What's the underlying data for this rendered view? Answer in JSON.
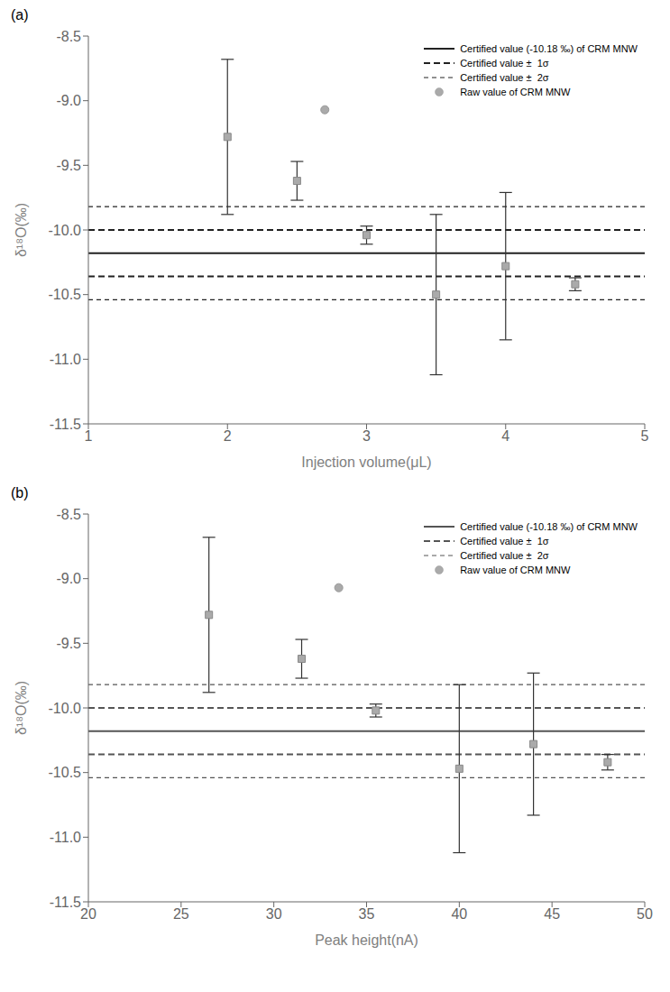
{
  "chart_data": [
    {
      "type": "scatter",
      "title": "(a)",
      "x_label": "Injection volume(μL)",
      "y_label": "δ¹⁸O(‰)",
      "xlim": [
        1,
        5
      ],
      "ylim": [
        -11.5,
        -8.5
      ],
      "xticks": [
        1,
        2,
        3,
        4,
        5
      ],
      "yticks": [
        -11.5,
        {
          "value": -11.0,
          "label": "-11.0"
        },
        -10.5,
        {
          "value": -10.0,
          "label": "-10.0"
        },
        -9.5,
        {
          "value": -9.0,
          "label": "-9.0"
        },
        -8.5
      ],
      "grid": false,
      "legend": "upper right",
      "series": [
        {
          "type": "scatter",
          "marker": "square",
          "color": "#aaaaaa",
          "error_color": "#333333",
          "x": [
            2.0,
            2.5,
            3.0,
            3.5,
            4.0,
            4.5
          ],
          "values": [
            -9.28,
            -9.62,
            -10.04,
            -10.5,
            -10.28,
            -10.42
          ],
          "error_lo": [
            0.6,
            0.15,
            0.07,
            0.62,
            0.57,
            0.05
          ],
          "error_hi": [
            0.6,
            0.15,
            0.07,
            0.62,
            0.57,
            0.05
          ]
        },
        {
          "type": "hline",
          "name": "Certified value (-10.18 ‰) of CRM MNW",
          "line_style": "solid",
          "color": "#222222",
          "values": [
            -10.18
          ]
        },
        {
          "type": "hline",
          "name": "Certified value ±  1σ",
          "line_style": "dashed",
          "color": "#222222",
          "values": [
            -10.0,
            -10.36
          ]
        },
        {
          "type": "hline",
          "name": "Certified value ±  2σ",
          "line_style": "dashed",
          "color": "#222222",
          "values": [
            -9.82,
            -10.54
          ]
        },
        {
          "type": "scatter",
          "name": "Raw value of CRM MNW",
          "marker": "circle",
          "color": "#aaaaaa",
          "x": [
            2.7
          ],
          "values": [
            -9.07
          ]
        }
      ]
    },
    {
      "type": "scatter",
      "title": "(b)",
      "x_label": "Peak height(nA)",
      "y_label": "δ¹⁸O(‰)",
      "xlim": [
        20,
        50
      ],
      "ylim": [
        -11.5,
        -8.5
      ],
      "xticks": [
        20,
        25,
        30,
        35,
        40,
        45,
        50
      ],
      "yticks": [
        -11.5,
        {
          "value": -11.0,
          "label": "-11.0"
        },
        -10.5,
        {
          "value": -10.0,
          "label": "-10.0"
        },
        -9.5,
        {
          "value": -9.0,
          "label": "-9.0"
        },
        -8.5
      ],
      "grid": false,
      "legend": "upper right",
      "series": [
        {
          "type": "scatter",
          "marker": "square",
          "color": "#aaaaaa",
          "error_color": "#333333",
          "x": [
            26.5,
            31.5,
            35.5,
            40.0,
            44.0,
            48.0
          ],
          "values": [
            -9.28,
            -9.62,
            -10.02,
            -10.47,
            -10.28,
            -10.42
          ],
          "error_lo": [
            0.6,
            0.15,
            0.05,
            0.65,
            0.55,
            0.06
          ],
          "error_hi": [
            0.6,
            0.15,
            0.05,
            0.65,
            0.55,
            0.06
          ]
        },
        {
          "type": "hline",
          "name": "Certified value (-10.18 ‰) of CRM MNW",
          "line_style": "solid",
          "color": "#555555",
          "values": [
            -10.18
          ]
        },
        {
          "type": "hline",
          "name": "Certified value ±  1σ",
          "line_style": "dashed",
          "color": "#555555",
          "values": [
            -10.0,
            -10.36
          ]
        },
        {
          "type": "hline",
          "name": "Certified value ±  2σ",
          "line_style": "dashed",
          "color": "#555555",
          "values": [
            -9.82,
            -10.54
          ]
        },
        {
          "type": "scatter",
          "name": "Raw value of CRM MNW",
          "marker": "circle",
          "color": "#aaaaaa",
          "x": [
            33.5
          ],
          "values": [
            -9.07
          ]
        }
      ]
    }
  ]
}
